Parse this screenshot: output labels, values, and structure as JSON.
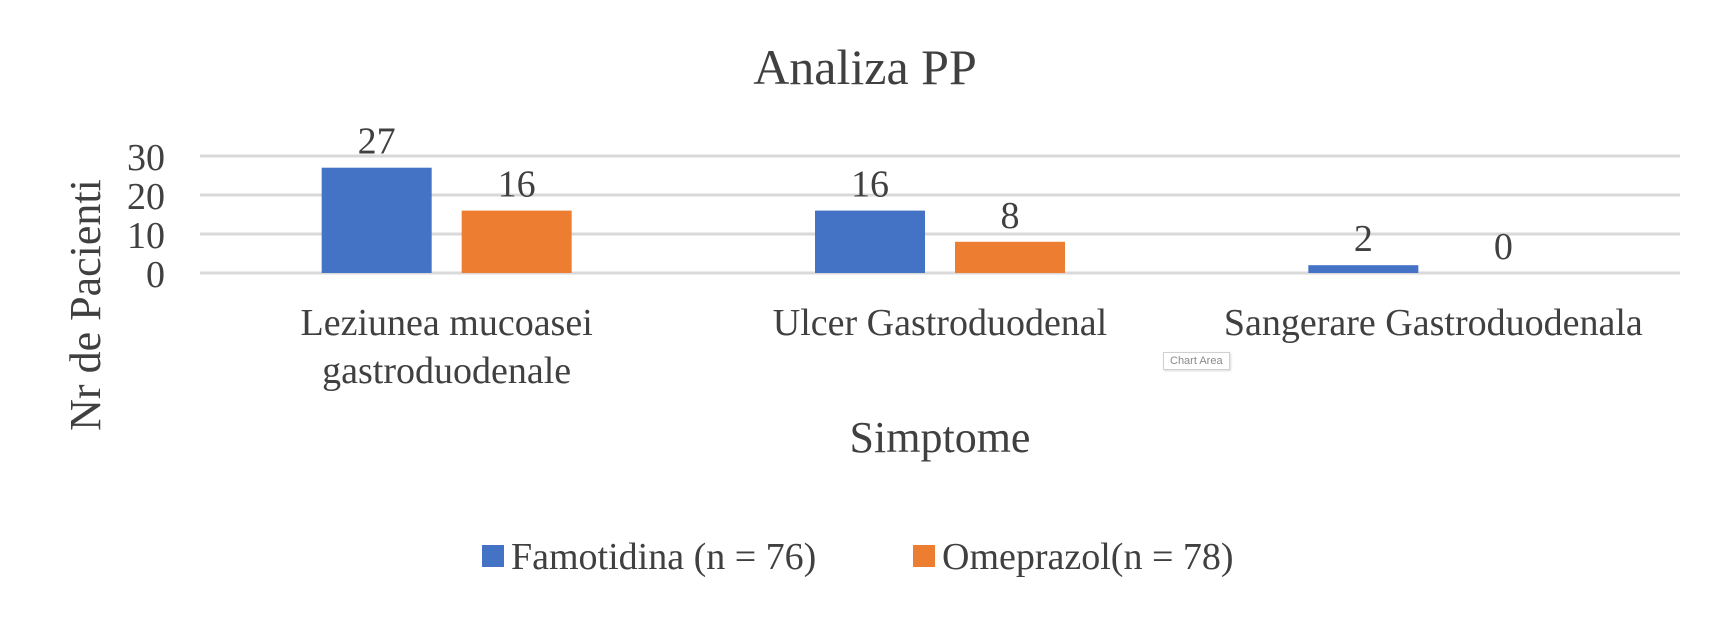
{
  "chart_data": {
    "type": "bar",
    "title": "Analiza PP",
    "xlabel": "Simptome",
    "ylabel": "Nr de Pacienti",
    "categories": [
      [
        "Leziunea mucoasei",
        "gastroduodenale"
      ],
      [
        "Ulcer Gastroduodenal"
      ],
      [
        "Sangerare Gastroduodenala"
      ]
    ],
    "series": [
      {
        "name": "Famotidina (n = 76)",
        "values": [
          27,
          16,
          2
        ],
        "color": "#4472C4"
      },
      {
        "name": "Omeprazol(n = 78)",
        "values": [
          16,
          8,
          0
        ],
        "color": "#ED7D31"
      }
    ],
    "ylim": [
      0,
      30
    ],
    "yticks": [
      0,
      10,
      20,
      30
    ],
    "grid": true,
    "legend": "bottom",
    "data_labels": true
  },
  "tooltip": "Chart Area"
}
